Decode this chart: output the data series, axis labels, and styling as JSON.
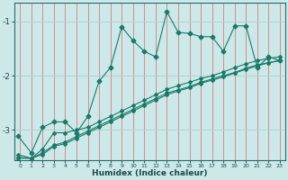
{
  "xlabel": "Humidex (Indice chaleur)",
  "ylabel": "",
  "bg_color": "#cce8e8",
  "vgrid_color": "#d08080",
  "hgrid_color": "#b0d0d0",
  "line_color": "#1a7a6a",
  "xlim": [
    -0.5,
    23.5
  ],
  "ylim": [
    -3.55,
    -0.65
  ],
  "yticks": [
    -3,
    -2,
    -1
  ],
  "xticks": [
    0,
    1,
    2,
    3,
    4,
    5,
    6,
    7,
    8,
    9,
    10,
    11,
    12,
    13,
    14,
    15,
    16,
    17,
    18,
    19,
    20,
    21,
    22,
    23
  ],
  "series": [
    [
      -0.2,
      -3.1,
      1,
      -3.42,
      2,
      -2.95,
      3,
      -2.85,
      4,
      -2.85,
      5,
      -3.05,
      6,
      -2.75,
      7,
      -2.1,
      8,
      -1.85,
      9,
      -1.1,
      10,
      -1.35,
      11,
      -1.55,
      12,
      -1.65,
      13,
      -0.82,
      14,
      -1.2,
      15,
      -1.22,
      16,
      -1.28,
      17,
      -1.28,
      18,
      -1.55,
      19,
      -1.08,
      20,
      -1.08,
      21,
      -1.85,
      22,
      -1.65,
      23,
      -1.72
    ],
    [
      -0.2,
      -3.45,
      1,
      -3.52,
      2,
      -3.35,
      3,
      -3.05,
      4,
      -3.05,
      5,
      -3.0,
      6,
      -2.95,
      7,
      -2.85,
      8,
      -2.75,
      9,
      -2.65,
      10,
      -2.55,
      11,
      -2.45,
      12,
      -2.35,
      13,
      -2.25,
      14,
      -2.18,
      15,
      -2.12,
      16,
      -2.05,
      17,
      -2.0,
      18,
      -1.93,
      19,
      -1.85,
      20,
      -1.78,
      21,
      -1.72,
      22,
      -1.68,
      23,
      -1.65
    ],
    [
      -0.2,
      -3.5,
      1,
      -3.52,
      2,
      -3.42,
      3,
      -3.28,
      4,
      -3.22,
      5,
      -3.12,
      6,
      -3.02,
      7,
      -2.92,
      8,
      -2.82,
      9,
      -2.72,
      10,
      -2.62,
      11,
      -2.52,
      12,
      -2.42,
      13,
      -2.32,
      14,
      -2.26,
      15,
      -2.2,
      16,
      -2.12,
      17,
      -2.06,
      18,
      -2.0,
      19,
      -1.94,
      20,
      -1.86,
      21,
      -1.8,
      22,
      -1.76,
      23,
      -1.72
    ],
    [
      -0.2,
      -3.52,
      1,
      -3.52,
      2,
      -3.45,
      3,
      -3.3,
      4,
      -3.25,
      5,
      -3.15,
      6,
      -3.05,
      7,
      -2.95,
      8,
      -2.85,
      9,
      -2.75,
      10,
      -2.65,
      11,
      -2.55,
      12,
      -2.45,
      13,
      -2.35,
      14,
      -2.28,
      15,
      -2.22,
      16,
      -2.14,
      17,
      -2.08,
      18,
      -2.02,
      19,
      -1.95,
      20,
      -1.88,
      21,
      -1.82,
      22,
      -1.76,
      23,
      -1.72
    ]
  ]
}
